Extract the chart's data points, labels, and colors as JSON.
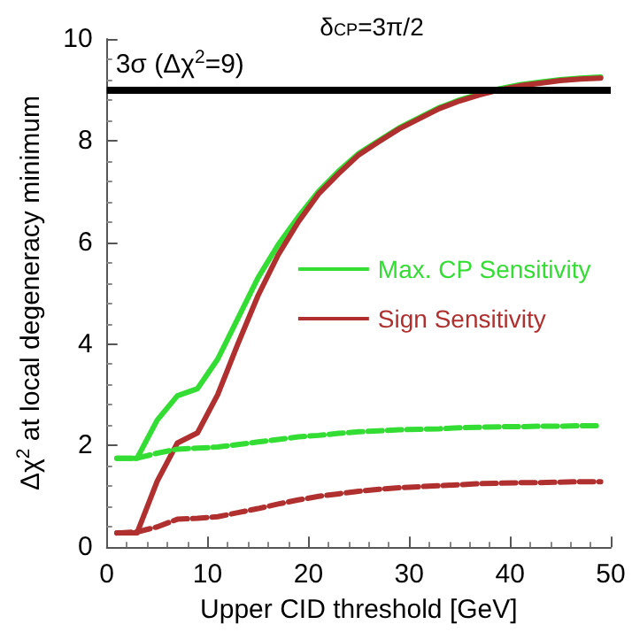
{
  "chart_data": {
    "type": "line",
    "title": "δ$_{CP}$=3π/2",
    "xlabel": "Upper CID threshold [GeV]",
    "ylabel": "Δχ$^{2}$ at local degeneracy minimum",
    "x": [
      1,
      3,
      5,
      7,
      9,
      11,
      13,
      15,
      17,
      19,
      21,
      23,
      25,
      27,
      29,
      31,
      33,
      35,
      37,
      39,
      41,
      43,
      45,
      47,
      49
    ],
    "series": [
      {
        "name": "Max. CP Sensitivity",
        "color": "#33dd33",
        "line_style": "solid",
        "values": [
          1.75,
          1.75,
          2.5,
          2.98,
          3.12,
          3.7,
          4.5,
          5.3,
          5.95,
          6.5,
          7.0,
          7.4,
          7.75,
          8.0,
          8.25,
          8.45,
          8.65,
          8.8,
          8.92,
          9.02,
          9.1,
          9.15,
          9.2,
          9.23,
          9.25
        ]
      },
      {
        "name": "Sign Sensitivity",
        "color": "#b03030",
        "line_style": "solid",
        "values": [
          0.28,
          0.28,
          1.3,
          2.05,
          2.25,
          3.0,
          4.0,
          4.95,
          5.75,
          6.4,
          6.95,
          7.35,
          7.72,
          7.98,
          8.23,
          8.43,
          8.63,
          8.78,
          8.9,
          9.0,
          9.08,
          9.13,
          9.18,
          9.21,
          9.23
        ]
      },
      {
        "color": "#33dd33",
        "line_style": "dashed",
        "values": [
          1.75,
          1.75,
          1.85,
          1.93,
          1.95,
          1.97,
          2.02,
          2.07,
          2.12,
          2.17,
          2.2,
          2.24,
          2.27,
          2.29,
          2.31,
          2.32,
          2.33,
          2.35,
          2.36,
          2.37,
          2.37,
          2.38,
          2.38,
          2.39,
          2.39
        ]
      },
      {
        "color": "#b03030",
        "line_style": "dashed",
        "values": [
          0.28,
          0.3,
          0.4,
          0.55,
          0.57,
          0.6,
          0.68,
          0.76,
          0.85,
          0.93,
          1.0,
          1.05,
          1.1,
          1.14,
          1.17,
          1.19,
          1.21,
          1.23,
          1.25,
          1.26,
          1.27,
          1.27,
          1.28,
          1.29,
          1.29
        ]
      }
    ],
    "xlim": [
      0,
      50
    ],
    "xticks": [
      0,
      10,
      20,
      30,
      40,
      50
    ],
    "ylim": [
      0,
      10
    ],
    "yticks": [
      0,
      2,
      4,
      6,
      8,
      10
    ],
    "ref_lines": [
      {
        "axis": "y",
        "value": 9,
        "label": "3σ (Δχ$^{2}$=9)",
        "color": "#000000",
        "line_style": "solid"
      }
    ],
    "grid": false,
    "legend": "right",
    "marker": "none"
  }
}
